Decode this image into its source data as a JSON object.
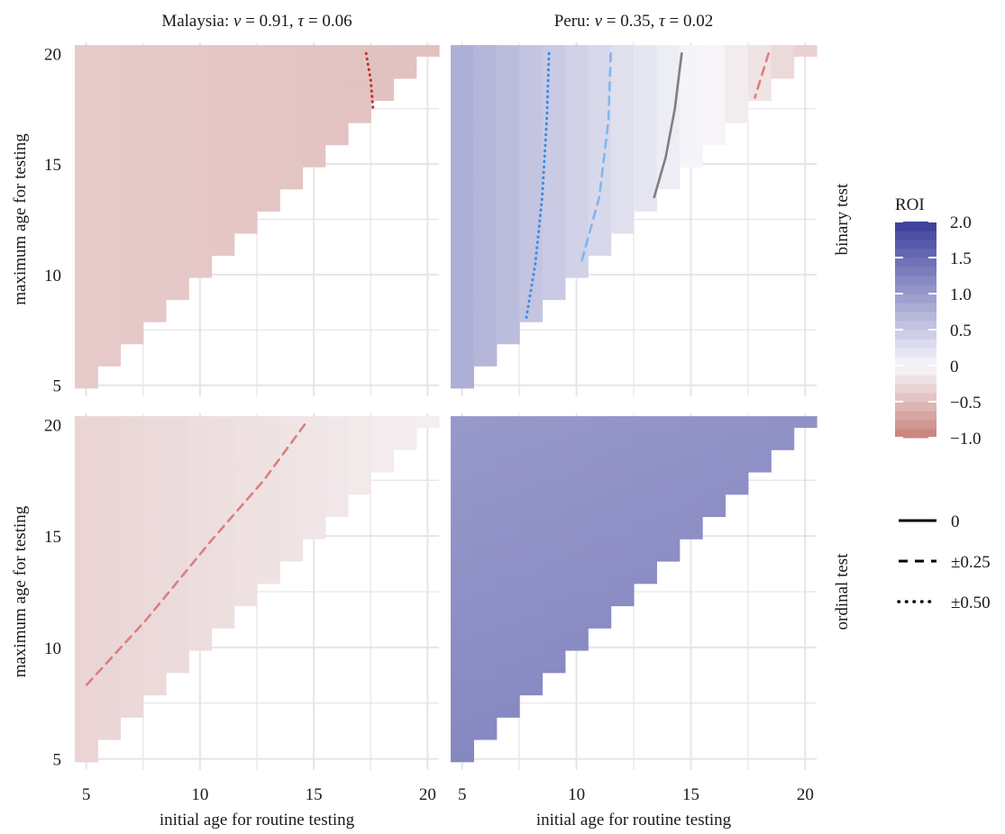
{
  "chart_data": {
    "type": "heatmap",
    "panels": [
      {
        "id": "mal-binary",
        "country": "Malaysia",
        "test": "binary test",
        "nu": "0.91",
        "tau": "0.06",
        "roi_at_x5": -0.38,
        "roi_at_x20": -0.46,
        "contours": [
          {
            "level": -0.5,
            "style": "dotted",
            "color": "#c03030",
            "points": [
              [
                17.3,
                20
              ],
              [
                17.5,
                18.8
              ],
              [
                17.6,
                17.5
              ]
            ]
          }
        ]
      },
      {
        "id": "peru-binary",
        "country": "Peru",
        "test": "binary test",
        "nu": "0.35",
        "tau": "0.02",
        "roi_at_x5": 0.78,
        "roi_at_x20": -0.32,
        "contours": [
          {
            "level": 0.5,
            "style": "dotted",
            "color": "#3a8ee6",
            "points": [
              [
                8.8,
                20
              ],
              [
                8.7,
                17
              ],
              [
                8.5,
                13.5
              ],
              [
                8.2,
                10.5
              ],
              [
                7.8,
                8
              ]
            ]
          },
          {
            "level": 0.25,
            "style": "dashed",
            "color": "#7fb6ef",
            "points": [
              [
                11.5,
                20
              ],
              [
                11.4,
                17
              ],
              [
                11,
                13.5
              ],
              [
                10.2,
                10.5
              ]
            ]
          },
          {
            "level": 0,
            "style": "solid",
            "color": "#7f7f7f",
            "points": [
              [
                14.6,
                20
              ],
              [
                14.3,
                17.5
              ],
              [
                13.9,
                15.3
              ],
              [
                13.4,
                13.5
              ]
            ]
          },
          {
            "level": -0.25,
            "style": "dashed",
            "color": "#d98080",
            "points": [
              [
                18.4,
                20
              ],
              [
                18.1,
                19
              ],
              [
                17.8,
                18
              ]
            ]
          }
        ]
      },
      {
        "id": "mal-ordinal",
        "country": "Malaysia",
        "test": "ordinal test",
        "nu": "0.91",
        "tau": "0.06",
        "roi_at_x5": -0.3,
        "roi_at_x20": -0.08,
        "contours": [
          {
            "level": -0.25,
            "style": "dashed",
            "color": "#d98080",
            "points": [
              [
                14.6,
                20
              ],
              [
                12.8,
                17.5
              ],
              [
                10.5,
                14.8
              ],
              [
                7.6,
                11.2
              ],
              [
                5,
                8.3
              ]
            ]
          }
        ]
      },
      {
        "id": "peru-ordinal",
        "country": "Peru",
        "test": "ordinal test",
        "nu": "0.35",
        "tau": "0.02",
        "roi_at_x5": 1.2,
        "roi_at_x20": 1.1,
        "y_gradient": 0.012,
        "contours": []
      }
    ],
    "x_range": [
      5,
      20
    ],
    "y_range": [
      5,
      20
    ],
    "x_ticks": [
      5,
      10,
      15,
      20
    ],
    "y_ticks": [
      5,
      10,
      15,
      20
    ],
    "xlabel": "initial age for routine testing",
    "ylabel": "maximum age for testing",
    "colorbar": {
      "title": "ROI",
      "min": -1.0,
      "max": 2.0,
      "ticks": [
        {
          "v": 2.0,
          "label": "2.0"
        },
        {
          "v": 1.5,
          "label": "1.5"
        },
        {
          "v": 1.0,
          "label": "1.0"
        },
        {
          "v": 0.5,
          "label": "0.5"
        },
        {
          "v": 0,
          "label": "0"
        },
        {
          "v": -0.5,
          "label": "−0.5"
        },
        {
          "v": -1.0,
          "label": "−1.0"
        }
      ]
    },
    "linetype_legend": [
      {
        "style": "solid",
        "label": "0"
      },
      {
        "style": "dashed",
        "label": "±0.25"
      },
      {
        "style": "dotted",
        "label": "±0.50"
      }
    ],
    "colors": {
      "high": "#3a3d9b",
      "mid": "#f8f8fb",
      "low": "#c88079",
      "grid": "#e5e5e5"
    }
  }
}
